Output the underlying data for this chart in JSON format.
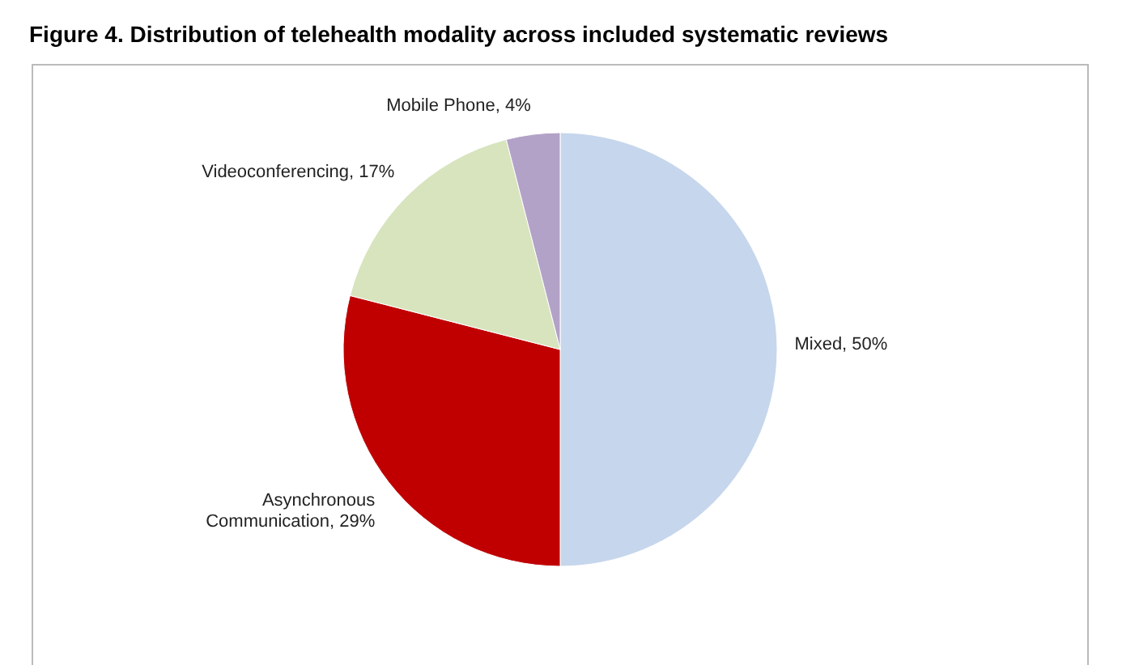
{
  "chart_data": {
    "type": "pie",
    "title": "Figure 4. Distribution of telehealth modality across included systematic reviews",
    "categories": [
      "Mixed",
      "Asynchronous Communication",
      "Videoconferencing",
      "Mobile Phone"
    ],
    "values": [
      50,
      29,
      17,
      4
    ],
    "colors": [
      "#c6d6ec",
      "#c00000",
      "#d7e4bd",
      "#b3a2c7"
    ],
    "value_labels": [
      "50%",
      "29%",
      "17%",
      "4%"
    ]
  }
}
